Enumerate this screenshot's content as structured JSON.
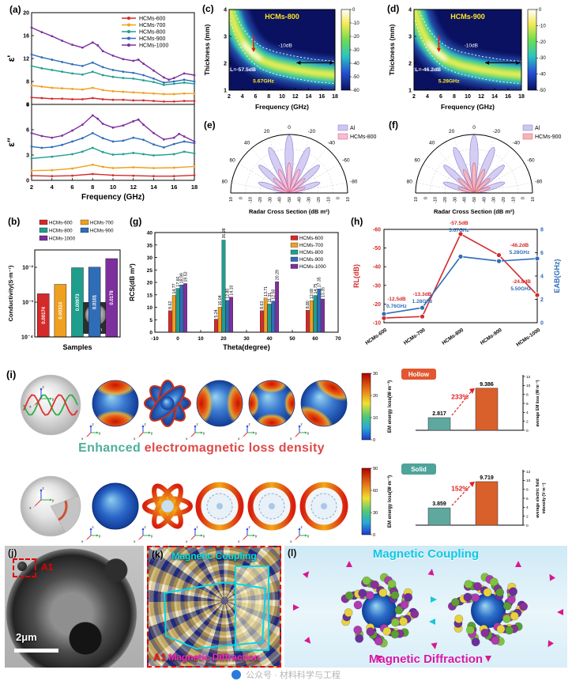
{
  "samples": [
    "HCMs-600",
    "HCMs-700",
    "HCMs-800",
    "HCMs-900",
    "HCMs-1000"
  ],
  "series_colors": [
    "#d42a2a",
    "#efa020",
    "#1f9e8e",
    "#2f6db8",
    "#7d2f9e"
  ],
  "panel_a": {
    "label": "(a)",
    "xlabel": "Frequency (GHz)",
    "xticks": [
      2,
      4,
      6,
      8,
      10,
      12,
      14,
      16,
      18
    ],
    "top": {
      "ylabel": "ε'",
      "ylim": [
        4,
        20
      ],
      "yticks": [
        4,
        8,
        12,
        16,
        20
      ],
      "series": [
        {
          "name": "HCMs-600",
          "points": [
            [
              2,
              5.2
            ],
            [
              3,
              5.1
            ],
            [
              4,
              5.0
            ],
            [
              5,
              5.0
            ],
            [
              6,
              4.9
            ],
            [
              7,
              4.9
            ],
            [
              8,
              5.1
            ],
            [
              9,
              4.9
            ],
            [
              10,
              4.8
            ],
            [
              11,
              4.8
            ],
            [
              12,
              4.7
            ],
            [
              13,
              4.7
            ],
            [
              14,
              4.6
            ],
            [
              15,
              4.5
            ],
            [
              16,
              4.5
            ],
            [
              17,
              4.6
            ],
            [
              18,
              4.6
            ]
          ]
        },
        {
          "name": "HCMs-700",
          "points": [
            [
              2,
              7.3
            ],
            [
              3,
              7.1
            ],
            [
              4,
              6.9
            ],
            [
              5,
              6.8
            ],
            [
              6,
              6.7
            ],
            [
              7,
              6.6
            ],
            [
              8,
              6.9
            ],
            [
              9,
              6.5
            ],
            [
              10,
              6.3
            ],
            [
              11,
              6.2
            ],
            [
              12,
              6.1
            ],
            [
              13,
              6.0
            ],
            [
              14,
              5.9
            ],
            [
              15,
              5.8
            ],
            [
              16,
              5.8
            ],
            [
              17,
              5.9
            ],
            [
              18,
              5.9
            ]
          ]
        },
        {
          "name": "HCMs-800",
          "points": [
            [
              2,
              10.7
            ],
            [
              3,
              10.3
            ],
            [
              4,
              10.0
            ],
            [
              5,
              9.7
            ],
            [
              6,
              9.4
            ],
            [
              7,
              9.2
            ],
            [
              8,
              9.7
            ],
            [
              9,
              9.1
            ],
            [
              10,
              8.8
            ],
            [
              11,
              8.6
            ],
            [
              12,
              8.5
            ],
            [
              13,
              8.2
            ],
            [
              14,
              7.9
            ],
            [
              15,
              7.4
            ],
            [
              16,
              7.6
            ],
            [
              17,
              7.8
            ],
            [
              18,
              7.6
            ]
          ]
        },
        {
          "name": "HCMs-900",
          "points": [
            [
              2,
              12.7
            ],
            [
              3,
              12.2
            ],
            [
              4,
              11.8
            ],
            [
              5,
              11.4
            ],
            [
              6,
              11.0
            ],
            [
              7,
              10.7
            ],
            [
              8,
              11.3
            ],
            [
              9,
              10.5
            ],
            [
              10,
              10.0
            ],
            [
              11,
              9.7
            ],
            [
              12,
              9.5
            ],
            [
              13,
              9.1
            ],
            [
              14,
              8.5
            ],
            [
              15,
              7.8
            ],
            [
              16,
              8.0
            ],
            [
              17,
              8.3
            ],
            [
              18,
              8.0
            ]
          ]
        },
        {
          "name": "HCMs-1000",
          "points": [
            [
              2,
              17.4
            ],
            [
              3,
              16.6
            ],
            [
              4,
              15.9
            ],
            [
              5,
              15.1
            ],
            [
              6,
              14.4
            ],
            [
              7,
              13.9
            ],
            [
              8,
              14.8
            ],
            [
              8.5,
              14.3
            ],
            [
              9,
              13.3
            ],
            [
              10,
              12.5
            ],
            [
              11,
              11.9
            ],
            [
              12,
              11.6
            ],
            [
              12.5,
              11.8
            ],
            [
              13,
              11.1
            ],
            [
              14,
              9.9
            ],
            [
              15,
              8.7
            ],
            [
              15.5,
              8.3
            ],
            [
              16,
              8.6
            ],
            [
              17,
              9.4
            ],
            [
              18,
              9.1
            ]
          ]
        }
      ]
    },
    "bottom": {
      "ylabel": "ε″",
      "ylim": [
        0,
        9
      ],
      "yticks": [
        0,
        3,
        6,
        9
      ],
      "series": [
        {
          "name": "HCMs-600",
          "points": [
            [
              2,
              0.55
            ],
            [
              4,
              0.5
            ],
            [
              6,
              0.55
            ],
            [
              8,
              0.75
            ],
            [
              10,
              0.6
            ],
            [
              12,
              0.55
            ],
            [
              14,
              0.5
            ],
            [
              16,
              0.5
            ],
            [
              18,
              0.6
            ]
          ]
        },
        {
          "name": "HCMs-700",
          "points": [
            [
              2,
              1.15
            ],
            [
              4,
              1.2
            ],
            [
              6,
              1.4
            ],
            [
              8,
              1.85
            ],
            [
              9,
              1.6
            ],
            [
              10,
              1.45
            ],
            [
              12,
              1.55
            ],
            [
              14,
              1.45
            ],
            [
              16,
              1.5
            ],
            [
              18,
              1.65
            ]
          ]
        },
        {
          "name": "HCMs-800",
          "points": [
            [
              2,
              2.6
            ],
            [
              4,
              2.8
            ],
            [
              6,
              3.1
            ],
            [
              7,
              3.4
            ],
            [
              8,
              3.85
            ],
            [
              9,
              3.35
            ],
            [
              10,
              3.05
            ],
            [
              11,
              3.1
            ],
            [
              12,
              3.25
            ],
            [
              13,
              3.1
            ],
            [
              14,
              2.95
            ],
            [
              16,
              3.1
            ],
            [
              17,
              3.4
            ],
            [
              18,
              3.2
            ]
          ]
        },
        {
          "name": "HCMs-900",
          "points": [
            [
              2,
              4.0
            ],
            [
              3,
              3.85
            ],
            [
              4,
              3.95
            ],
            [
              5,
              4.2
            ],
            [
              6,
              4.6
            ],
            [
              7,
              5.0
            ],
            [
              8,
              5.6
            ],
            [
              9,
              5.0
            ],
            [
              10,
              4.6
            ],
            [
              11,
              4.7
            ],
            [
              12,
              5.05
            ],
            [
              13,
              4.8
            ],
            [
              14,
              4.25
            ],
            [
              15,
              3.9
            ],
            [
              16,
              4.3
            ],
            [
              17,
              4.6
            ],
            [
              18,
              4.4
            ]
          ]
        },
        {
          "name": "HCMs-1000",
          "points": [
            [
              2,
              5.6
            ],
            [
              3,
              5.25
            ],
            [
              4,
              5.05
            ],
            [
              5,
              5.3
            ],
            [
              6,
              5.9
            ],
            [
              7,
              6.6
            ],
            [
              8,
              7.7
            ],
            [
              8.5,
              7.3
            ],
            [
              9,
              6.7
            ],
            [
              10,
              6.25
            ],
            [
              11,
              6.5
            ],
            [
              12,
              7.0
            ],
            [
              12.5,
              7.2
            ],
            [
              13,
              6.6
            ],
            [
              14,
              5.6
            ],
            [
              15,
              4.85
            ],
            [
              16,
              5.05
            ],
            [
              16.5,
              5.5
            ],
            [
              17,
              5.2
            ],
            [
              18,
              4.6
            ]
          ]
        }
      ]
    }
  },
  "panel_b": {
    "label": "(b)",
    "ylabel": "Conductivity(S·m⁻¹)",
    "xlabel": "Samples",
    "values": [
      0.00174,
      0.00324,
      0.00973,
      0.0101,
      0.0178
    ],
    "value_labels": [
      "0.00174",
      "0.00324",
      "0.00973",
      "0.0101",
      "0.0178"
    ],
    "yticks": [
      "10⁻⁴",
      "10⁻³",
      "10⁻²"
    ],
    "ytick_exponents": [
      -4,
      -3,
      -2
    ],
    "inset_scale": "13mm"
  },
  "panel_c": {
    "label": "(c)",
    "title": "HCMs-800",
    "xlabel": "Frequency (GHz)",
    "ylabel": "Thickness (mm)",
    "xticks": [
      2,
      4,
      6,
      8,
      10,
      12,
      14,
      16,
      18
    ],
    "yticks": [
      1,
      2,
      3,
      4
    ],
    "ann_contour": "-10dB",
    "ann_rl": "RL=-57.5dB",
    "ann_freq": "5.67GHz",
    "colorbar_ticks": [
      0,
      -10,
      -20,
      -30,
      -40,
      -50,
      -60
    ]
  },
  "panel_d": {
    "label": "(d)",
    "title": "HCMs-900",
    "xlabel": "Frequency (GHz)",
    "ylabel": "Thickness (mm)",
    "xticks": [
      2,
      4,
      6,
      8,
      10,
      12,
      14,
      16,
      18
    ],
    "yticks": [
      1,
      2,
      3,
      4
    ],
    "ann_contour": "-10dB",
    "ann_rl": "RL=-46.2dB",
    "ann_freq": "5.28GHz",
    "colorbar_ticks": [
      0,
      -10,
      -20,
      -30,
      -40,
      -50
    ]
  },
  "panel_e": {
    "label": "(e)",
    "legend": [
      "Al",
      "HCMs-800"
    ],
    "xlabel": "Radar Cross Section (dB m²)",
    "angle_ticks": [
      80,
      60,
      40,
      20,
      0,
      -20,
      -40,
      -60,
      -80
    ],
    "radial_ticks": [
      10,
      0,
      -10,
      -20,
      -30,
      -40,
      -50,
      -40,
      -30,
      -20,
      -10,
      0,
      10
    ]
  },
  "panel_f": {
    "label": "(f)",
    "legend": [
      "Al",
      "HCMs-900"
    ],
    "xlabel": "Radar Cross Section (dB m²)",
    "angle_ticks": [
      80,
      60,
      40,
      20,
      0,
      -20,
      -40,
      -60,
      -80
    ],
    "radial_ticks": [
      10,
      0,
      -10,
      -20,
      -30,
      -40,
      -50,
      -40,
      -30,
      -20,
      -10,
      0,
      10
    ]
  },
  "panel_g": {
    "label": "(g)",
    "ylabel": "RCS(dB m²)",
    "xlabel": "Theta(degree)",
    "yticks": [
      0,
      5,
      10,
      15,
      20,
      25,
      30,
      35,
      40
    ],
    "xticks": [
      -10,
      0,
      10,
      20,
      30,
      40,
      50,
      60,
      70
    ],
    "group_theta": [
      0,
      20,
      40,
      60
    ],
    "series": [
      {
        "name": "HCMs-600",
        "values": [
          8.62,
          5.24,
          8.63,
          8.8
        ],
        "labels": [
          "8.62",
          "5.24",
          "8.63",
          "8.80"
        ]
      },
      {
        "name": "HCMs-700",
        "values": [
          14.77,
          10.04,
          13.71,
          12.68
        ],
        "labels": [
          "14.77",
          "10.04",
          "13.71",
          "12.68"
        ]
      },
      {
        "name": "HCMs-800",
        "values": [
          17.6,
          36.98,
          11.31,
          14.75
        ],
        "labels": [
          "17.60",
          "36.98",
          "11.31",
          "14.75"
        ]
      },
      {
        "name": "HCMs-900",
        "values": [
          18.99,
          12.8,
          12.5,
          17.35
        ],
        "labels": [
          "18.99",
          "12.80",
          "12.50",
          "17.35"
        ]
      },
      {
        "name": "HCMs-1000",
        "values": [
          19.52,
          14.1,
          20.29,
          13.35
        ],
        "labels": [
          "19.52",
          "14.10",
          "20.29",
          "13.35"
        ]
      }
    ]
  },
  "panel_h": {
    "label": "(h)",
    "left_axis": "RL(dB)",
    "right_axis": "EAB(GHz)",
    "left_ticks": [
      -10,
      -20,
      -30,
      -40,
      -50,
      -60
    ],
    "right_ticks": [
      0,
      2,
      4,
      6,
      8
    ],
    "rl": [
      -12.5,
      -13.3,
      -57.5,
      -46.2,
      -24.8
    ],
    "rl_labels": [
      "-12.5dB",
      "-13.3dB",
      "-57.5dB",
      "-46.2dB",
      "-24.8dB"
    ],
    "eab": [
      0.76,
      1.28,
      5.67,
      5.28,
      5.5
    ],
    "eab_labels": [
      "0.76GHz",
      "1.28GHz",
      "5.67GHz",
      "5.28GHz",
      "5.50GHz"
    ]
  },
  "panel_i": {
    "label": "(i)",
    "headline": {
      "part1": "Enhanced ",
      "part2": "electromagnetic loss density"
    },
    "axes": [
      "x",
      "y",
      "z"
    ],
    "colorbar1": {
      "title": "EM energy loss(W·m⁻³)",
      "ticks": [
        0,
        10,
        20,
        30
      ]
    },
    "colorbar2": {
      "title": "EM energy loss(W·m⁻³)",
      "ticks": [
        0,
        30,
        60,
        90
      ]
    },
    "hollow": {
      "badge": "Hollow",
      "values": [
        2.817,
        9.386
      ],
      "labels": [
        "2.817",
        "9.386"
      ],
      "pct": "233%",
      "axis": "average EM loss (W·m⁻³)",
      "ticks": [
        0,
        2,
        4,
        6,
        8,
        10,
        12
      ]
    },
    "solid": {
      "badge": "Solid",
      "values": [
        3.859,
        9.719
      ],
      "labels": [
        "3.859",
        "9.719"
      ],
      "pct": "152%",
      "axis": "average electric field intensity (V·m⁻¹)",
      "ticks": [
        0,
        2,
        4,
        6,
        8,
        10,
        12
      ]
    }
  },
  "panel_j": {
    "label": "(j)",
    "region": "A1",
    "scalebar": "2μm"
  },
  "panel_k": {
    "label": "(k)",
    "top_text": "Magnetic Coupling",
    "bottom_text": "Magnetic Diffraction",
    "region": "A1"
  },
  "panel_l": {
    "label": "(l)",
    "top_text": "Magnetic Coupling",
    "bottom_text": "Magnetic Diffraction"
  },
  "watermark": {
    "text": "公众号 · 材料科学与工程"
  }
}
